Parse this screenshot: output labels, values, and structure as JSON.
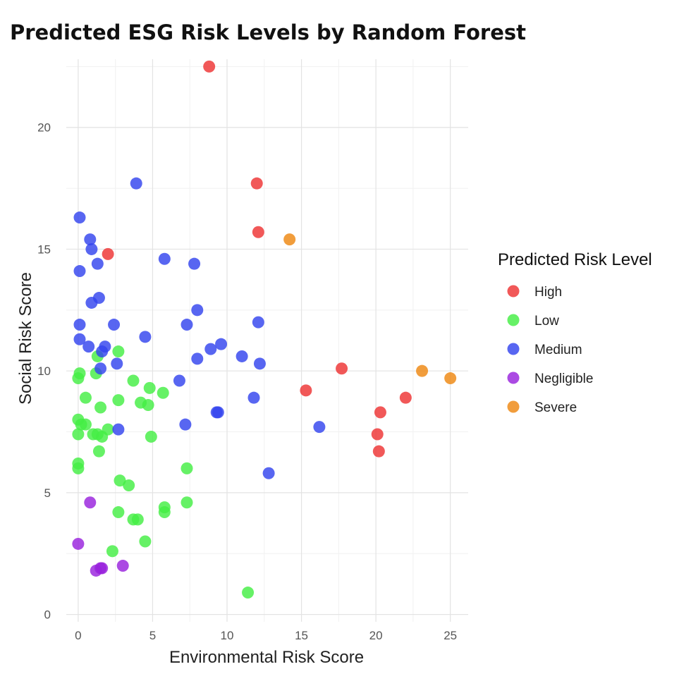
{
  "chart_data": {
    "type": "scatter",
    "title": "Predicted ESG Risk Levels by Random Forest",
    "xlabel": "Environmental Risk Score",
    "ylabel": "Social Risk Score",
    "xlim": [
      -0.8,
      26.2
    ],
    "ylim": [
      -0.3,
      22.8
    ],
    "xticks": [
      0,
      5,
      10,
      15,
      20,
      25
    ],
    "yticks": [
      0,
      5,
      10,
      15,
      20
    ],
    "grid": true,
    "legend_title": "Predicted Risk Level",
    "legend_position": "right",
    "series": [
      {
        "name": "High",
        "color": "#ee3333",
        "points": [
          [
            8.8,
            22.5
          ],
          [
            2.0,
            14.8
          ],
          [
            12.0,
            17.7
          ],
          [
            12.1,
            15.7
          ],
          [
            17.7,
            10.1
          ],
          [
            15.3,
            9.2
          ],
          [
            22.0,
            8.9
          ],
          [
            20.3,
            8.3
          ],
          [
            20.1,
            7.4
          ],
          [
            20.2,
            6.7
          ]
        ]
      },
      {
        "name": "Low",
        "color": "#44ee44",
        "points": [
          [
            0.1,
            9.9
          ],
          [
            0.0,
            9.7
          ],
          [
            0.5,
            8.9
          ],
          [
            1.2,
            9.9
          ],
          [
            2.7,
            10.8
          ],
          [
            1.3,
            10.6
          ],
          [
            3.7,
            9.6
          ],
          [
            4.8,
            9.3
          ],
          [
            5.7,
            9.1
          ],
          [
            0.0,
            8.0
          ],
          [
            0.2,
            7.8
          ],
          [
            0.5,
            7.8
          ],
          [
            0.0,
            7.4
          ],
          [
            1.0,
            7.4
          ],
          [
            1.5,
            8.5
          ],
          [
            1.6,
            7.3
          ],
          [
            1.3,
            7.4
          ],
          [
            2.0,
            7.6
          ],
          [
            2.7,
            8.8
          ],
          [
            4.2,
            8.7
          ],
          [
            4.7,
            8.6
          ],
          [
            4.9,
            7.3
          ],
          [
            1.4,
            6.7
          ],
          [
            0.0,
            6.2
          ],
          [
            0.0,
            6.0
          ],
          [
            7.3,
            6.0
          ],
          [
            2.8,
            5.5
          ],
          [
            3.4,
            5.3
          ],
          [
            2.7,
            4.2
          ],
          [
            3.7,
            3.9
          ],
          [
            4.0,
            3.9
          ],
          [
            5.8,
            4.4
          ],
          [
            5.8,
            4.2
          ],
          [
            7.3,
            4.6
          ],
          [
            4.5,
            3.0
          ],
          [
            2.3,
            2.6
          ],
          [
            11.4,
            0.9
          ]
        ]
      },
      {
        "name": "Medium",
        "color": "#3344ee",
        "points": [
          [
            3.9,
            17.7
          ],
          [
            0.1,
            16.3
          ],
          [
            0.8,
            15.4
          ],
          [
            0.9,
            15.0
          ],
          [
            1.3,
            14.4
          ],
          [
            0.1,
            14.1
          ],
          [
            5.8,
            14.6
          ],
          [
            7.8,
            14.4
          ],
          [
            1.4,
            13.0
          ],
          [
            0.9,
            12.8
          ],
          [
            0.1,
            11.9
          ],
          [
            2.4,
            11.9
          ],
          [
            8.0,
            12.5
          ],
          [
            7.3,
            11.9
          ],
          [
            12.1,
            12.0
          ],
          [
            0.1,
            11.3
          ],
          [
            0.7,
            11.0
          ],
          [
            1.8,
            11.0
          ],
          [
            1.6,
            10.8
          ],
          [
            4.5,
            11.4
          ],
          [
            8.9,
            10.9
          ],
          [
            9.6,
            11.1
          ],
          [
            8.0,
            10.5
          ],
          [
            11.0,
            10.6
          ],
          [
            2.6,
            10.3
          ],
          [
            12.2,
            10.3
          ],
          [
            1.5,
            10.1
          ],
          [
            6.8,
            9.6
          ],
          [
            11.8,
            8.9
          ],
          [
            9.3,
            8.3
          ],
          [
            9.4,
            8.3
          ],
          [
            2.7,
            7.6
          ],
          [
            7.2,
            7.8
          ],
          [
            16.2,
            7.7
          ],
          [
            12.8,
            5.8
          ]
        ]
      },
      {
        "name": "Negligible",
        "color": "#9922dd",
        "points": [
          [
            0.8,
            4.6
          ],
          [
            0.0,
            2.9
          ],
          [
            1.2,
            1.8
          ],
          [
            1.5,
            1.9
          ],
          [
            1.6,
            1.9
          ],
          [
            3.0,
            2.0
          ]
        ]
      },
      {
        "name": "Severe",
        "color": "#ee8811",
        "points": [
          [
            14.2,
            15.4
          ],
          [
            23.1,
            10.0
          ],
          [
            25.0,
            9.7
          ]
        ]
      }
    ]
  }
}
